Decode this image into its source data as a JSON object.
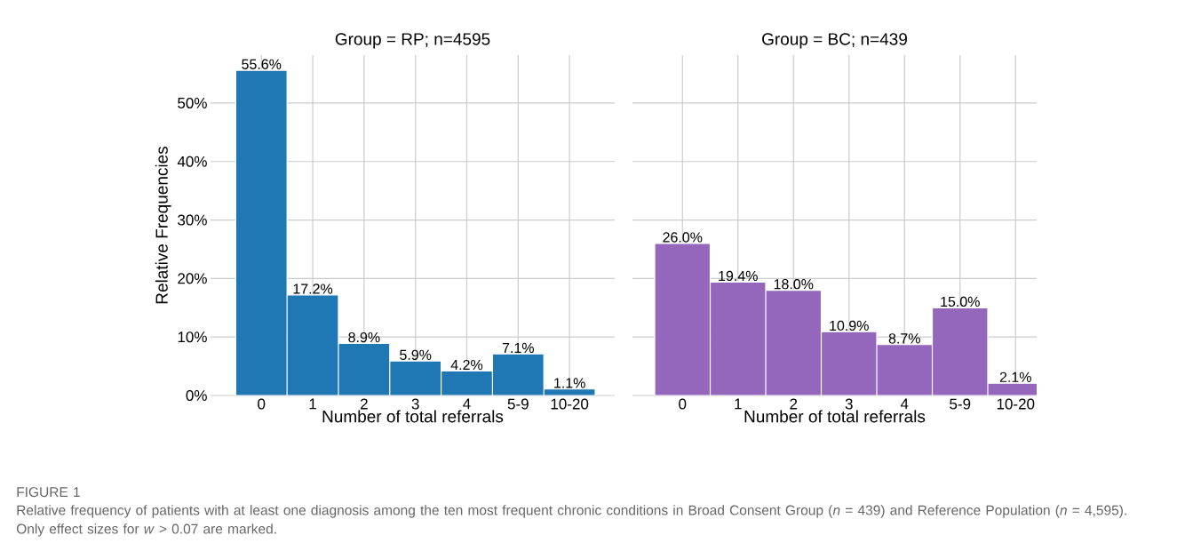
{
  "chart_data": [
    {
      "type": "bar",
      "title": "Group = RP; n=4595",
      "xlabel": "Number of total referrals",
      "ylabel": "Relative Frequencies",
      "categories": [
        "0",
        "1",
        "2",
        "3",
        "4",
        "5-9",
        "10-20"
      ],
      "values": [
        55.6,
        17.2,
        8.9,
        5.9,
        4.2,
        7.1,
        1.1
      ],
      "value_labels": [
        "55.6%",
        "17.2%",
        "8.9%",
        "5.9%",
        "4.2%",
        "7.1%",
        "1.1%"
      ],
      "color": "#1f77b4",
      "ylim": [
        0,
        58.2
      ],
      "yticks": [
        {
          "value": 0,
          "label": "0%"
        },
        {
          "value": 10,
          "label": "10%"
        },
        {
          "value": 20,
          "label": "20%"
        },
        {
          "value": 30,
          "label": "30%"
        },
        {
          "value": 40,
          "label": "40%"
        },
        {
          "value": 50,
          "label": "50%"
        }
      ],
      "grid": true,
      "annotations": [
        "FIGURE 1",
        "Relative frequency of patients with at least one diagnosis among the ten most frequent chronic conditions in Broad Consent Group (*n* = 439) and Reference Population (*n* = 4,595). Only effect sizes for *w* > 0.07 are marked."
      ]
    },
    {
      "type": "bar",
      "title": "Group = BC; n=439",
      "xlabel": "Number of total referrals",
      "categories": [
        "0",
        "1",
        "2",
        "3",
        "4",
        "5-9",
        "10-20"
      ],
      "values": [
        26.0,
        19.4,
        18.0,
        10.9,
        8.7,
        15.0,
        2.1
      ],
      "value_labels": [
        "26.0%",
        "19.4%",
        "18.0%",
        "10.9%",
        "8.7%",
        "15.0%",
        "2.1%"
      ],
      "color": "#9467bd",
      "ylim": [
        0,
        58.2
      ],
      "yticks": [
        0,
        10,
        20,
        30,
        40,
        50
      ],
      "grid": true,
      "tick_labels": "x"
    }
  ]
}
